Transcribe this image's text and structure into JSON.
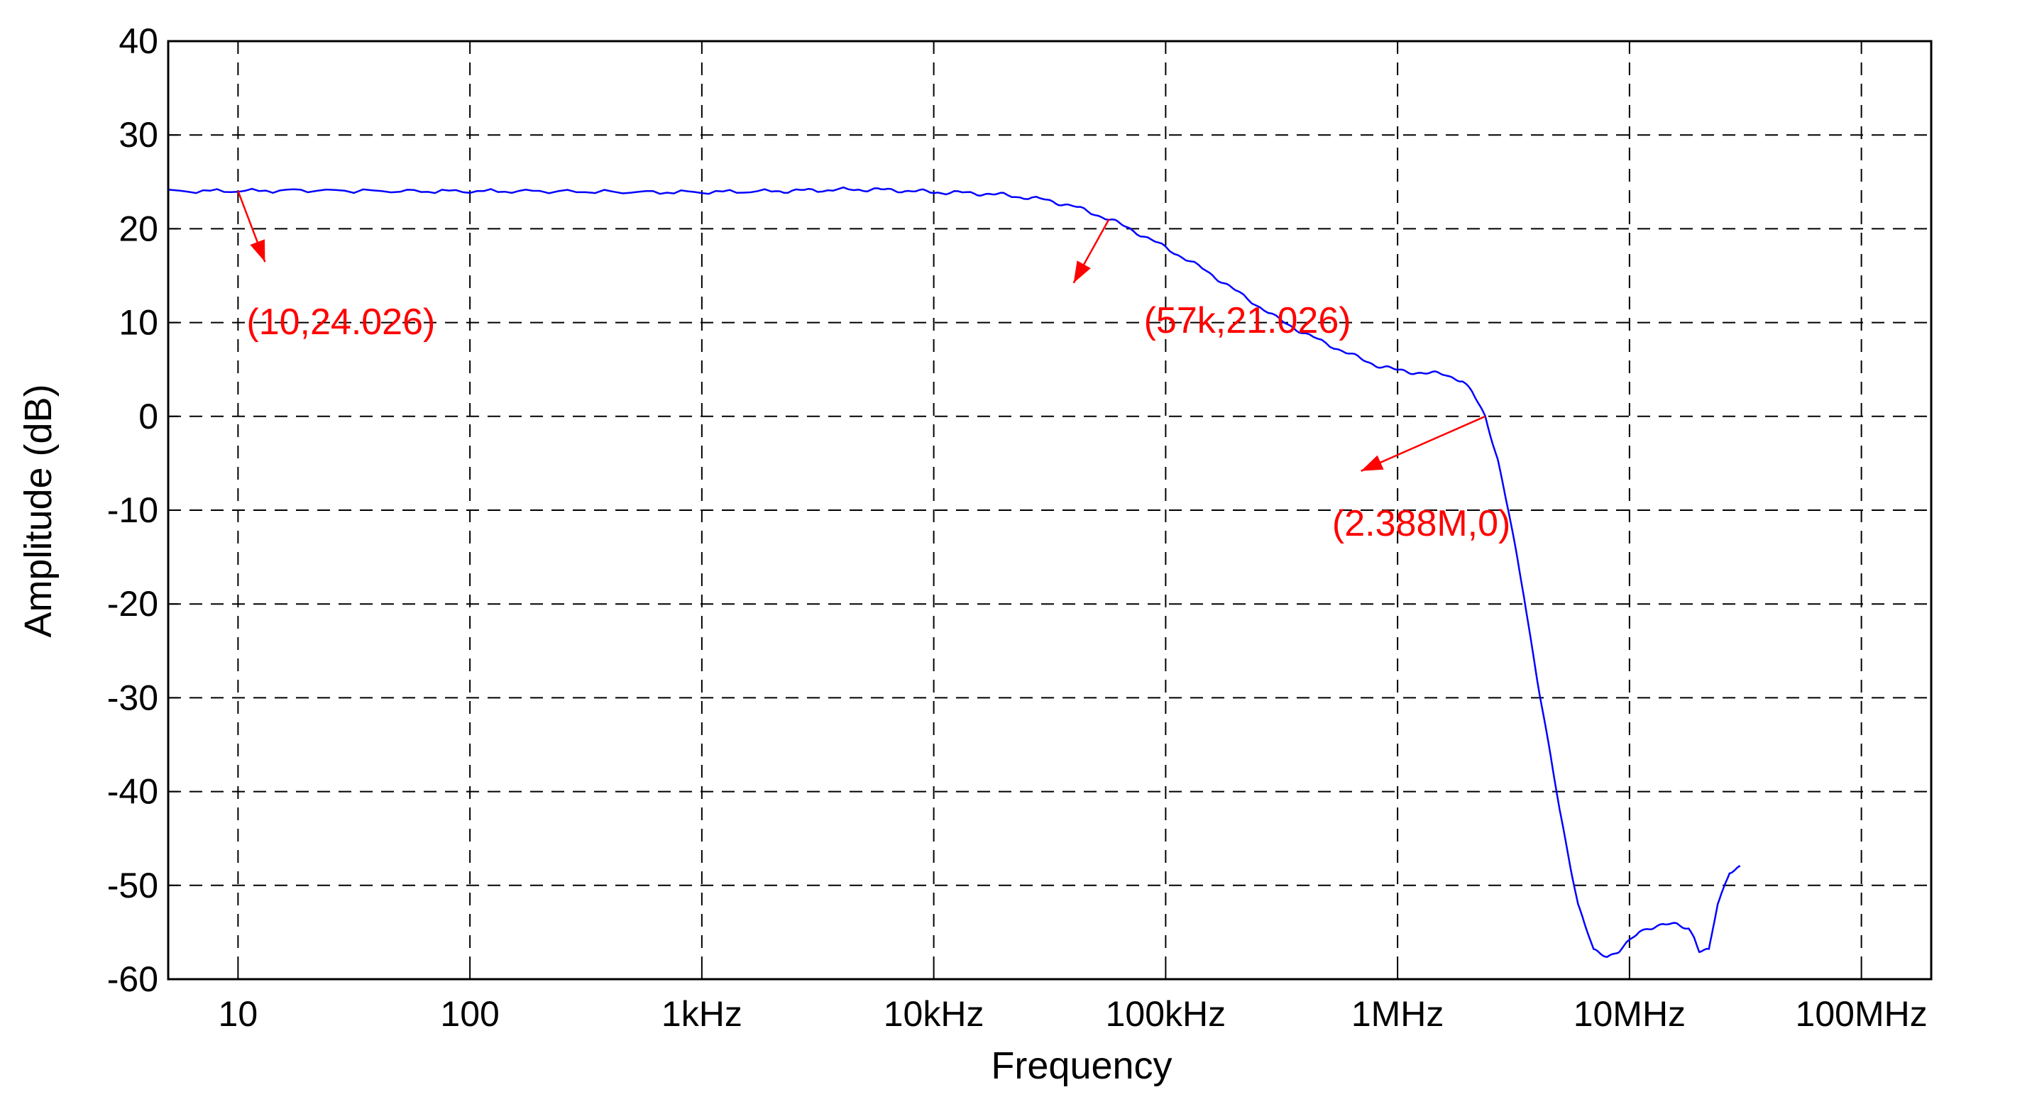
{
  "chart_data": {
    "type": "line",
    "xlabel": "Frequency",
    "ylabel": "Amplitude (dB)",
    "x_scale": "log",
    "xlim": [
      5,
      200000000
    ],
    "ylim": [
      -60,
      40
    ],
    "grid": true,
    "x_ticks": [
      {
        "value": 10,
        "label": "10"
      },
      {
        "value": 100,
        "label": "100"
      },
      {
        "value": 1000,
        "label": "1kHz"
      },
      {
        "value": 10000,
        "label": "10kHz"
      },
      {
        "value": 100000,
        "label": "100kHz"
      },
      {
        "value": 1000000,
        "label": "1MHz"
      },
      {
        "value": 10000000,
        "label": "10MHz"
      },
      {
        "value": 100000000,
        "label": "100MHz"
      }
    ],
    "y_ticks": [
      {
        "value": 40,
        "label": "40"
      },
      {
        "value": 30,
        "label": "30"
      },
      {
        "value": 20,
        "label": "20"
      },
      {
        "value": 10,
        "label": "10"
      },
      {
        "value": 0,
        "label": "0"
      },
      {
        "value": -10,
        "label": "-10"
      },
      {
        "value": -20,
        "label": "-20"
      },
      {
        "value": -30,
        "label": "-30"
      },
      {
        "value": -40,
        "label": "-40"
      },
      {
        "value": -50,
        "label": "-50"
      },
      {
        "value": -60,
        "label": "-60"
      }
    ],
    "series": [
      {
        "color": "#0000ff",
        "x": [
          5,
          10,
          20,
          50,
          100,
          200,
          500,
          1000,
          2000,
          3000,
          5000,
          7000,
          10000,
          15000,
          20000,
          30000,
          40000,
          57000,
          70000,
          100000,
          150000,
          200000,
          300000,
          400000,
          600000,
          800000,
          1000000,
          1300000,
          1600000,
          1900000,
          2100000,
          2388000,
          2700000,
          3000000,
          3500000,
          4000000,
          5000000,
          6000000,
          7000000,
          8000000,
          9000000,
          10000000,
          11000000,
          12000000,
          14000000,
          16000000,
          18000000,
          19000000,
          20000000,
          22000000,
          24000000,
          27000000,
          30000000
        ],
        "y": [
          24.0,
          24.026,
          24.1,
          24.0,
          24.0,
          24.0,
          23.9,
          23.9,
          24.0,
          24.1,
          24.2,
          24.1,
          23.9,
          23.8,
          23.6,
          23.1,
          22.4,
          21.026,
          20.0,
          18.0,
          15.5,
          13.4,
          10.5,
          8.8,
          6.8,
          5.5,
          4.9,
          4.6,
          4.5,
          3.8,
          2.5,
          0.0,
          -4.5,
          -10.0,
          -19.0,
          -28.0,
          -42.0,
          -52.0,
          -57.0,
          -57.5,
          -57.0,
          -56.0,
          -55.0,
          -54.5,
          -54.2,
          -54.2,
          -54.5,
          -55.5,
          -57.0,
          -57.0,
          -52.0,
          -48.5,
          -48.0
        ]
      }
    ],
    "annotations": [
      {
        "text": "(10,24.026)",
        "point_x": 10,
        "point_y": 24.026,
        "color": "#ff0000"
      },
      {
        "text": "(57k,21.026)",
        "point_x": 57000,
        "point_y": 21.026,
        "color": "#ff0000"
      },
      {
        "text": "(2.388M,0)",
        "point_x": 2388000,
        "point_y": 0,
        "color": "#ff0000"
      }
    ]
  }
}
